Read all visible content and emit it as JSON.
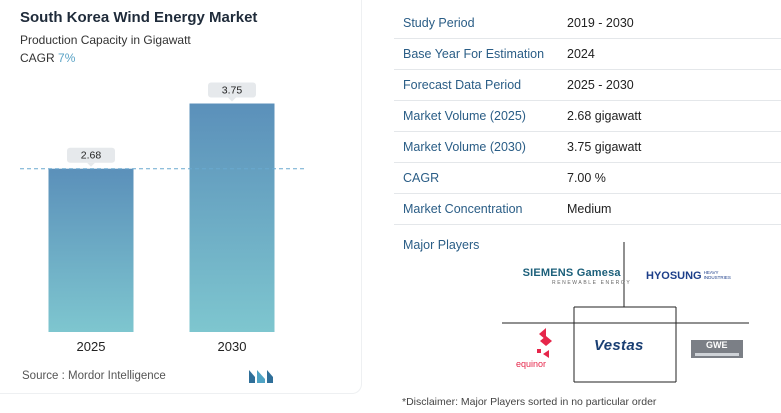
{
  "title": "South Korea Wind Energy Market",
  "subtitle": "Production Capacity in Gigawatt",
  "cagr_label": "CAGR",
  "cagr_value": "7%",
  "source": "Source : Mordor Intelligence",
  "chart_data": {
    "type": "bar",
    "categories": [
      "2025",
      "2030"
    ],
    "values": [
      2.68,
      3.75
    ],
    "data_labels": [
      "2.68",
      "3.75"
    ],
    "reference_line": 2.68,
    "ylim": [
      0,
      4.3
    ],
    "colors": {
      "bar_top": "#5b90ba",
      "bar_bottom": "#7ec6cf",
      "dash": "#6aa9cf",
      "label_bg": "#e6e9ec"
    }
  },
  "table": [
    {
      "key": "Study Period",
      "value": "2019 - 2030"
    },
    {
      "key": "Base Year For Estimation",
      "value": "2024"
    },
    {
      "key": "Forecast Data Period",
      "value": "2025 - 2030"
    },
    {
      "key": "Market Volume (2025)",
      "value": "2.68 gigawatt"
    },
    {
      "key": "Market Volume (2030)",
      "value": "3.75 gigawatt"
    },
    {
      "key": "CAGR",
      "value": "7.00 %"
    },
    {
      "key": "Market Concentration",
      "value": "Medium"
    }
  ],
  "players_label": "Major Players",
  "players": {
    "siemens": "SIEMENS Gamesa",
    "siemens_sub": "RENEWABLE ENERGY",
    "hyosung": "HYOSUNG",
    "hyosung_sub": "HEAVY INDUSTRIES",
    "equinor": "equinor",
    "vestas": "Vestas",
    "gwe": "GWE"
  },
  "disclaimer": "*Disclaimer: Major Players sorted in no particular order"
}
